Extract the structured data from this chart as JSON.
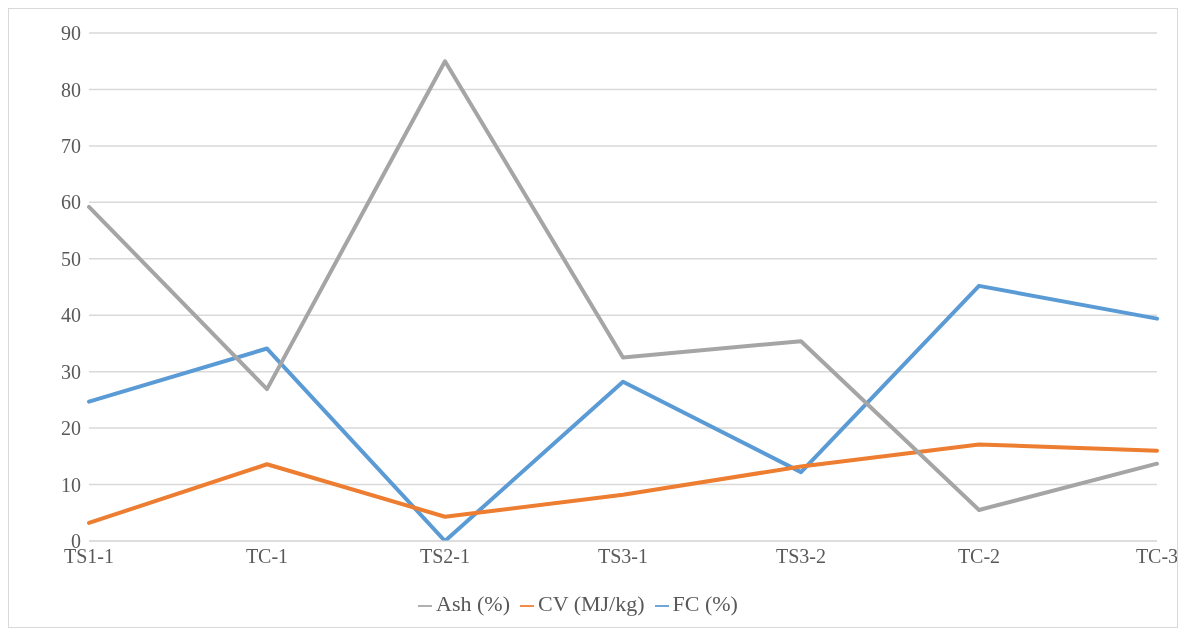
{
  "chart_data": {
    "type": "line",
    "categories": [
      "TS1-1",
      "TC-1",
      "TS2-1",
      "TS3-1",
      "TS3-2",
      "TC-2",
      "TC-3"
    ],
    "series": [
      {
        "name": "FC (%)",
        "color": "#5b9bd5",
        "values": [
          24.7,
          34.1,
          0,
          28.2,
          12.2,
          45.2,
          39.4
        ]
      },
      {
        "name": "CV (MJ/kg)",
        "color": "#ed7d31",
        "values": [
          3.2,
          13.6,
          4.3,
          8.2,
          13.2,
          17.1,
          16.0
        ]
      },
      {
        "name": "Ash (%)",
        "color": "#a5a5a5",
        "values": [
          59.2,
          26.9,
          85.0,
          32.5,
          35.4,
          5.5,
          13.7
        ]
      }
    ],
    "ylim": [
      0,
      90
    ],
    "yticks": [
      0,
      10,
      20,
      30,
      40,
      50,
      60,
      70,
      80,
      90
    ],
    "grid": "y",
    "legend": "bottom",
    "marker": "none",
    "line_style": "solid"
  }
}
